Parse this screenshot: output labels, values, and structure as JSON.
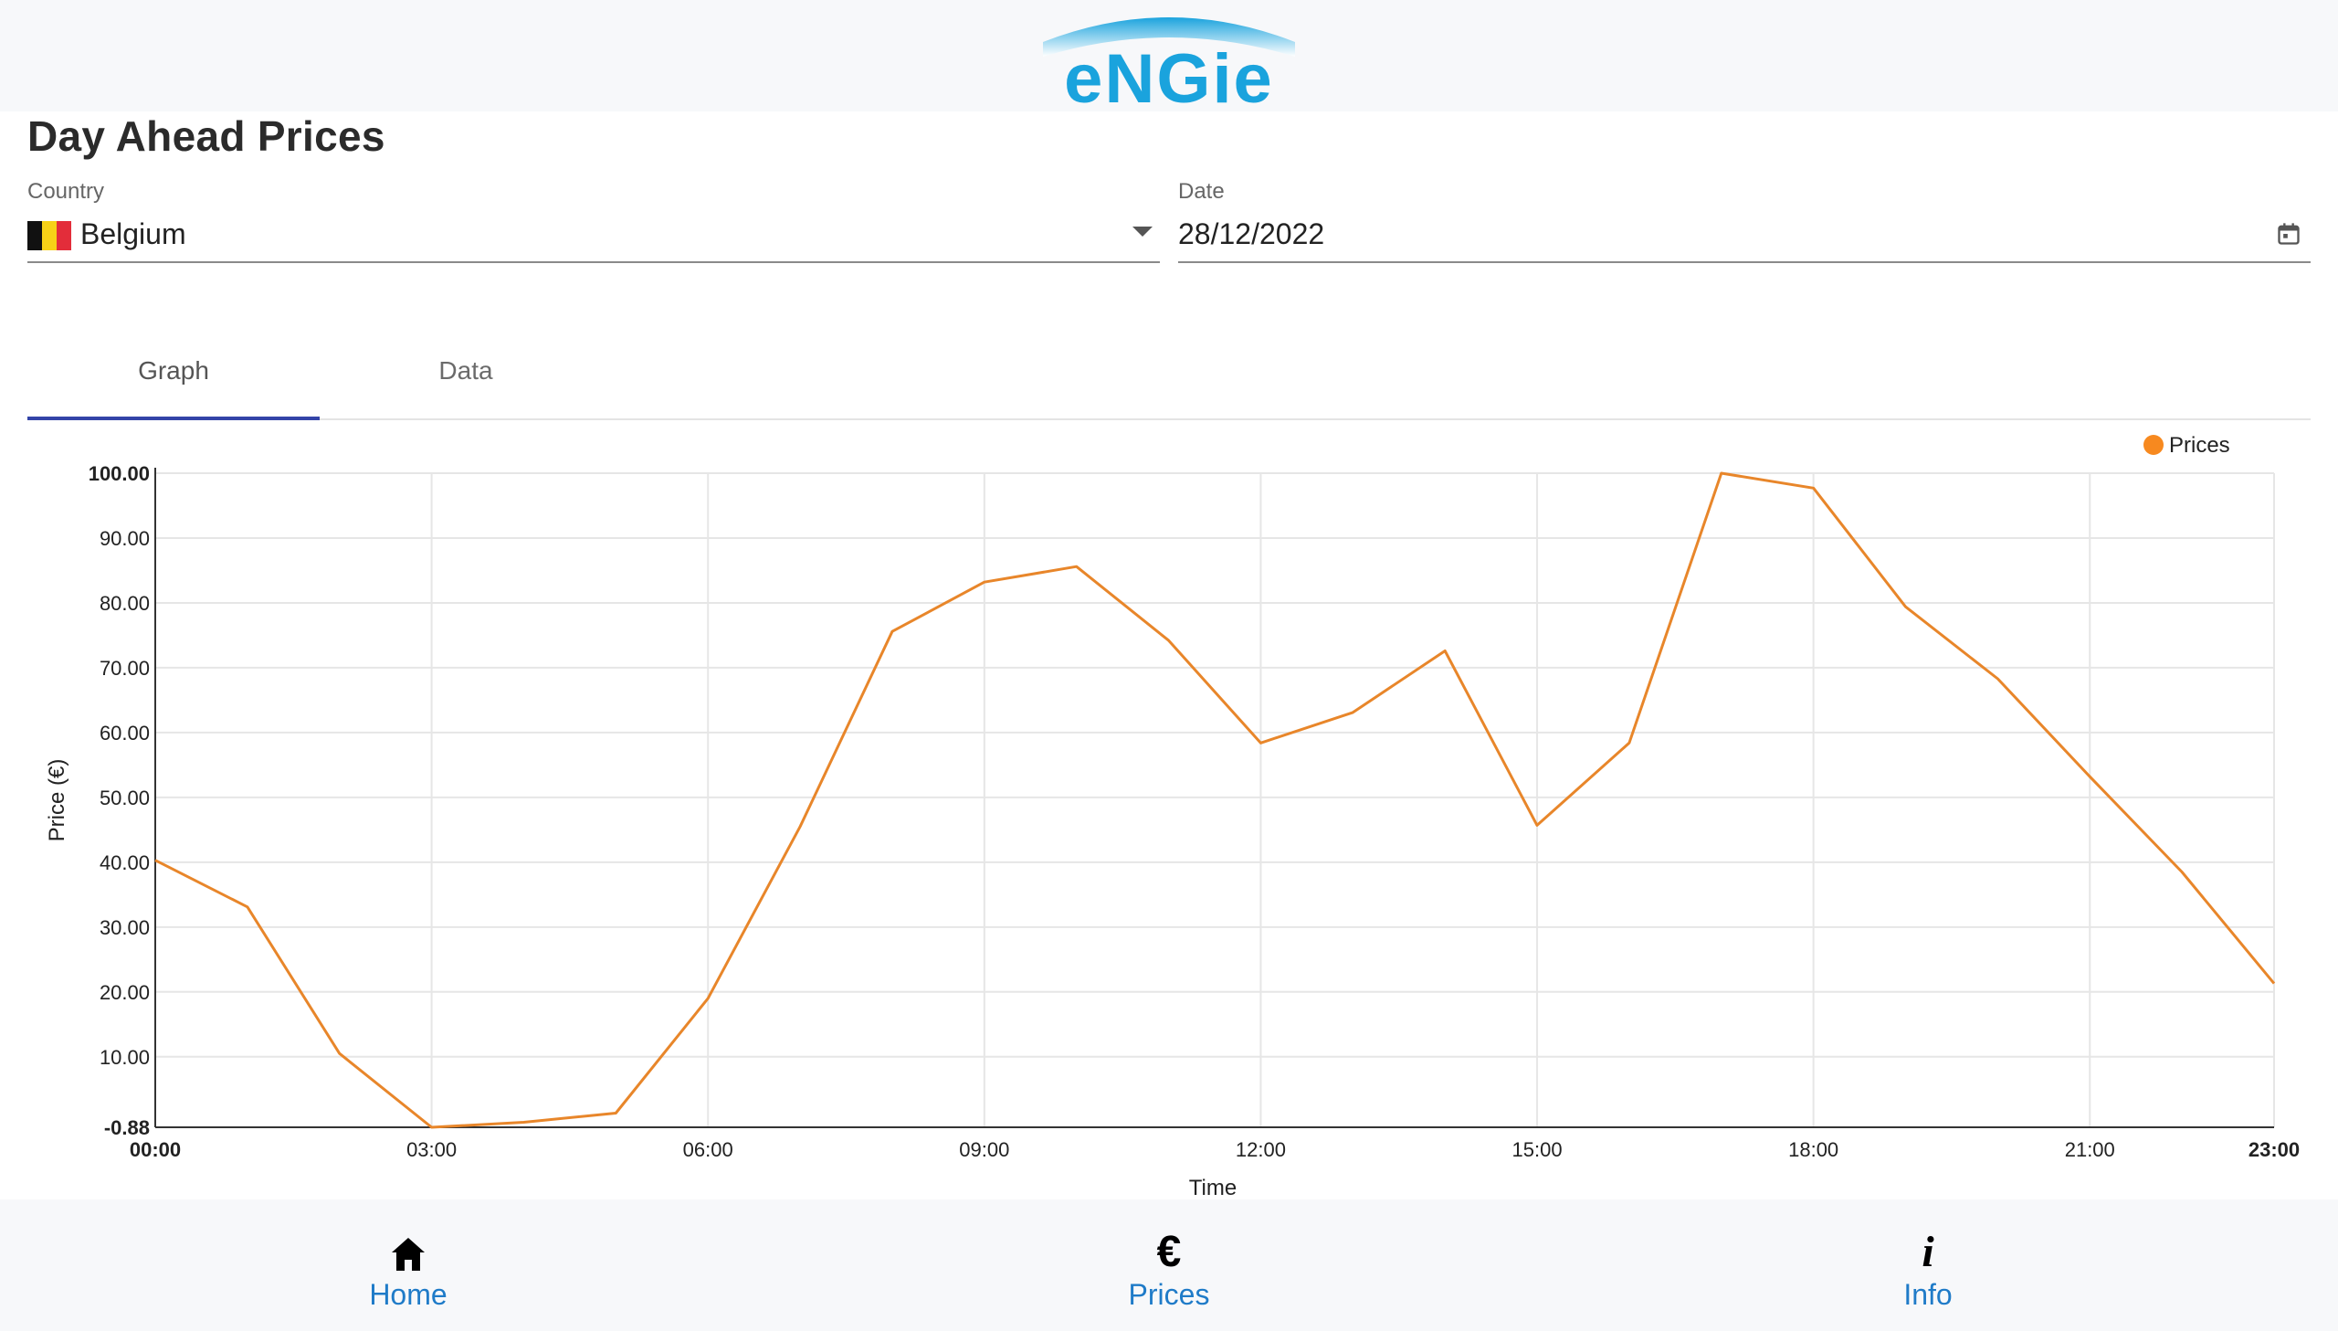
{
  "header": {
    "logo_text": "eNGie",
    "logo_color": "#1aa3dd"
  },
  "page": {
    "title": "Day Ahead Prices"
  },
  "filters": {
    "country_label": "Country",
    "country_value": "Belgium",
    "date_label": "Date",
    "date_value": "28/12/2022"
  },
  "tabs": [
    {
      "label": "Graph",
      "active": true
    },
    {
      "label": "Data",
      "active": false
    }
  ],
  "chart_data": {
    "type": "line",
    "xlabel": "Time",
    "ylabel": "Price (€)",
    "legend": {
      "entries": [
        "Prices"
      ],
      "placement": "top-right"
    },
    "grid": true,
    "x": [
      "00:00",
      "01:00",
      "02:00",
      "03:00",
      "04:00",
      "05:00",
      "06:00",
      "07:00",
      "08:00",
      "09:00",
      "10:00",
      "11:00",
      "12:00",
      "13:00",
      "14:00",
      "15:00",
      "16:00",
      "17:00",
      "18:00",
      "19:00",
      "20:00",
      "21:00",
      "22:00",
      "23:00"
    ],
    "x_tick_labels": [
      "00:00",
      "03:00",
      "06:00",
      "09:00",
      "12:00",
      "15:00",
      "18:00",
      "21:00",
      "23:00"
    ],
    "y_tick_labels": [
      "100.00",
      "90.00",
      "80.00",
      "70.00",
      "60.00",
      "50.00",
      "40.00",
      "30.00",
      "20.00",
      "10.00",
      "-0.88"
    ],
    "ylim": [
      -0.88,
      100
    ],
    "series": [
      {
        "name": "Prices",
        "color": "#e8862a",
        "values": [
          40.3,
          33.1,
          10.5,
          -0.88,
          -0.1,
          1.3,
          19.0,
          45.5,
          75.6,
          83.2,
          85.6,
          74.2,
          58.4,
          63.1,
          72.6,
          45.7,
          58.4,
          100.0,
          97.7,
          79.4,
          68.3,
          53.2,
          38.5,
          21.3
        ]
      }
    ]
  },
  "nav": [
    {
      "label": "Home",
      "icon": "home-icon"
    },
    {
      "label": "Prices",
      "icon": "euro-icon",
      "glyph": "€"
    },
    {
      "label": "Info",
      "icon": "info-icon",
      "glyph": "i"
    }
  ]
}
